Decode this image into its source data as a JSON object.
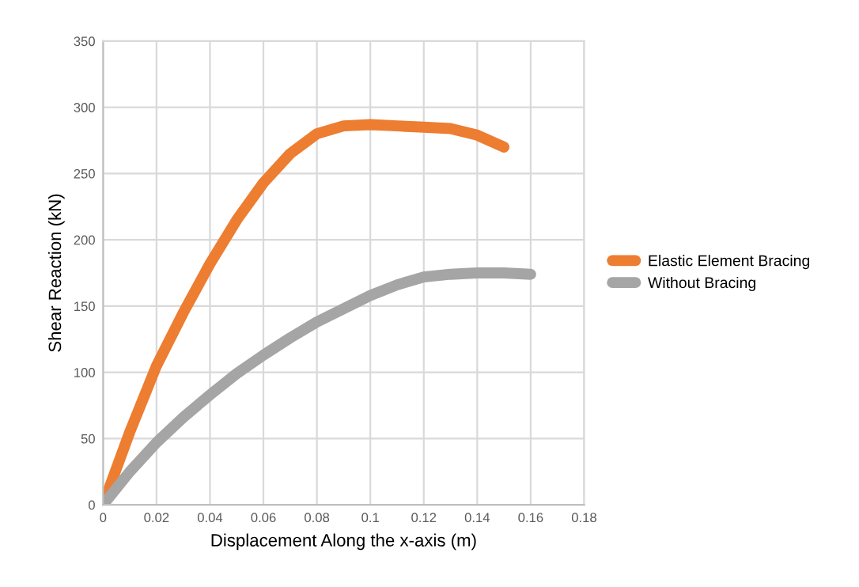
{
  "chart_data": {
    "type": "line",
    "xlabel": "Displacement Along the x-axis (m)",
    "ylabel": "Shear Reaction (kN)",
    "xlim": [
      0,
      0.18
    ],
    "xticks": [
      0,
      0.02,
      0.04,
      0.06,
      0.08,
      0.1,
      0.12,
      0.14,
      0.16,
      0.18
    ],
    "ylim": [
      0,
      350
    ],
    "yticks": [
      0,
      50,
      100,
      150,
      200,
      250,
      300,
      350
    ],
    "grid": true,
    "legend": "right",
    "series": [
      {
        "name": "Elastic Element Bracing",
        "color": "#ed7d31",
        "x": [
          0,
          0.01,
          0.02,
          0.03,
          0.04,
          0.05,
          0.06,
          0.07,
          0.08,
          0.09,
          0.1,
          0.11,
          0.12,
          0.13,
          0.14,
          0.15
        ],
        "values": [
          0,
          55,
          105,
          145,
          182,
          215,
          243,
          265,
          280,
          286,
          287,
          286,
          285,
          284,
          279,
          270
        ]
      },
      {
        "name": "Without Bracing",
        "color": "#a5a5a5",
        "x": [
          0,
          0.01,
          0.02,
          0.03,
          0.04,
          0.05,
          0.06,
          0.07,
          0.08,
          0.09,
          0.1,
          0.11,
          0.12,
          0.13,
          0.14,
          0.15,
          0.16
        ],
        "values": [
          0,
          25,
          47,
          66,
          83,
          99,
          113,
          126,
          138,
          148,
          158,
          166,
          172,
          174,
          175,
          175,
          174
        ]
      }
    ]
  }
}
